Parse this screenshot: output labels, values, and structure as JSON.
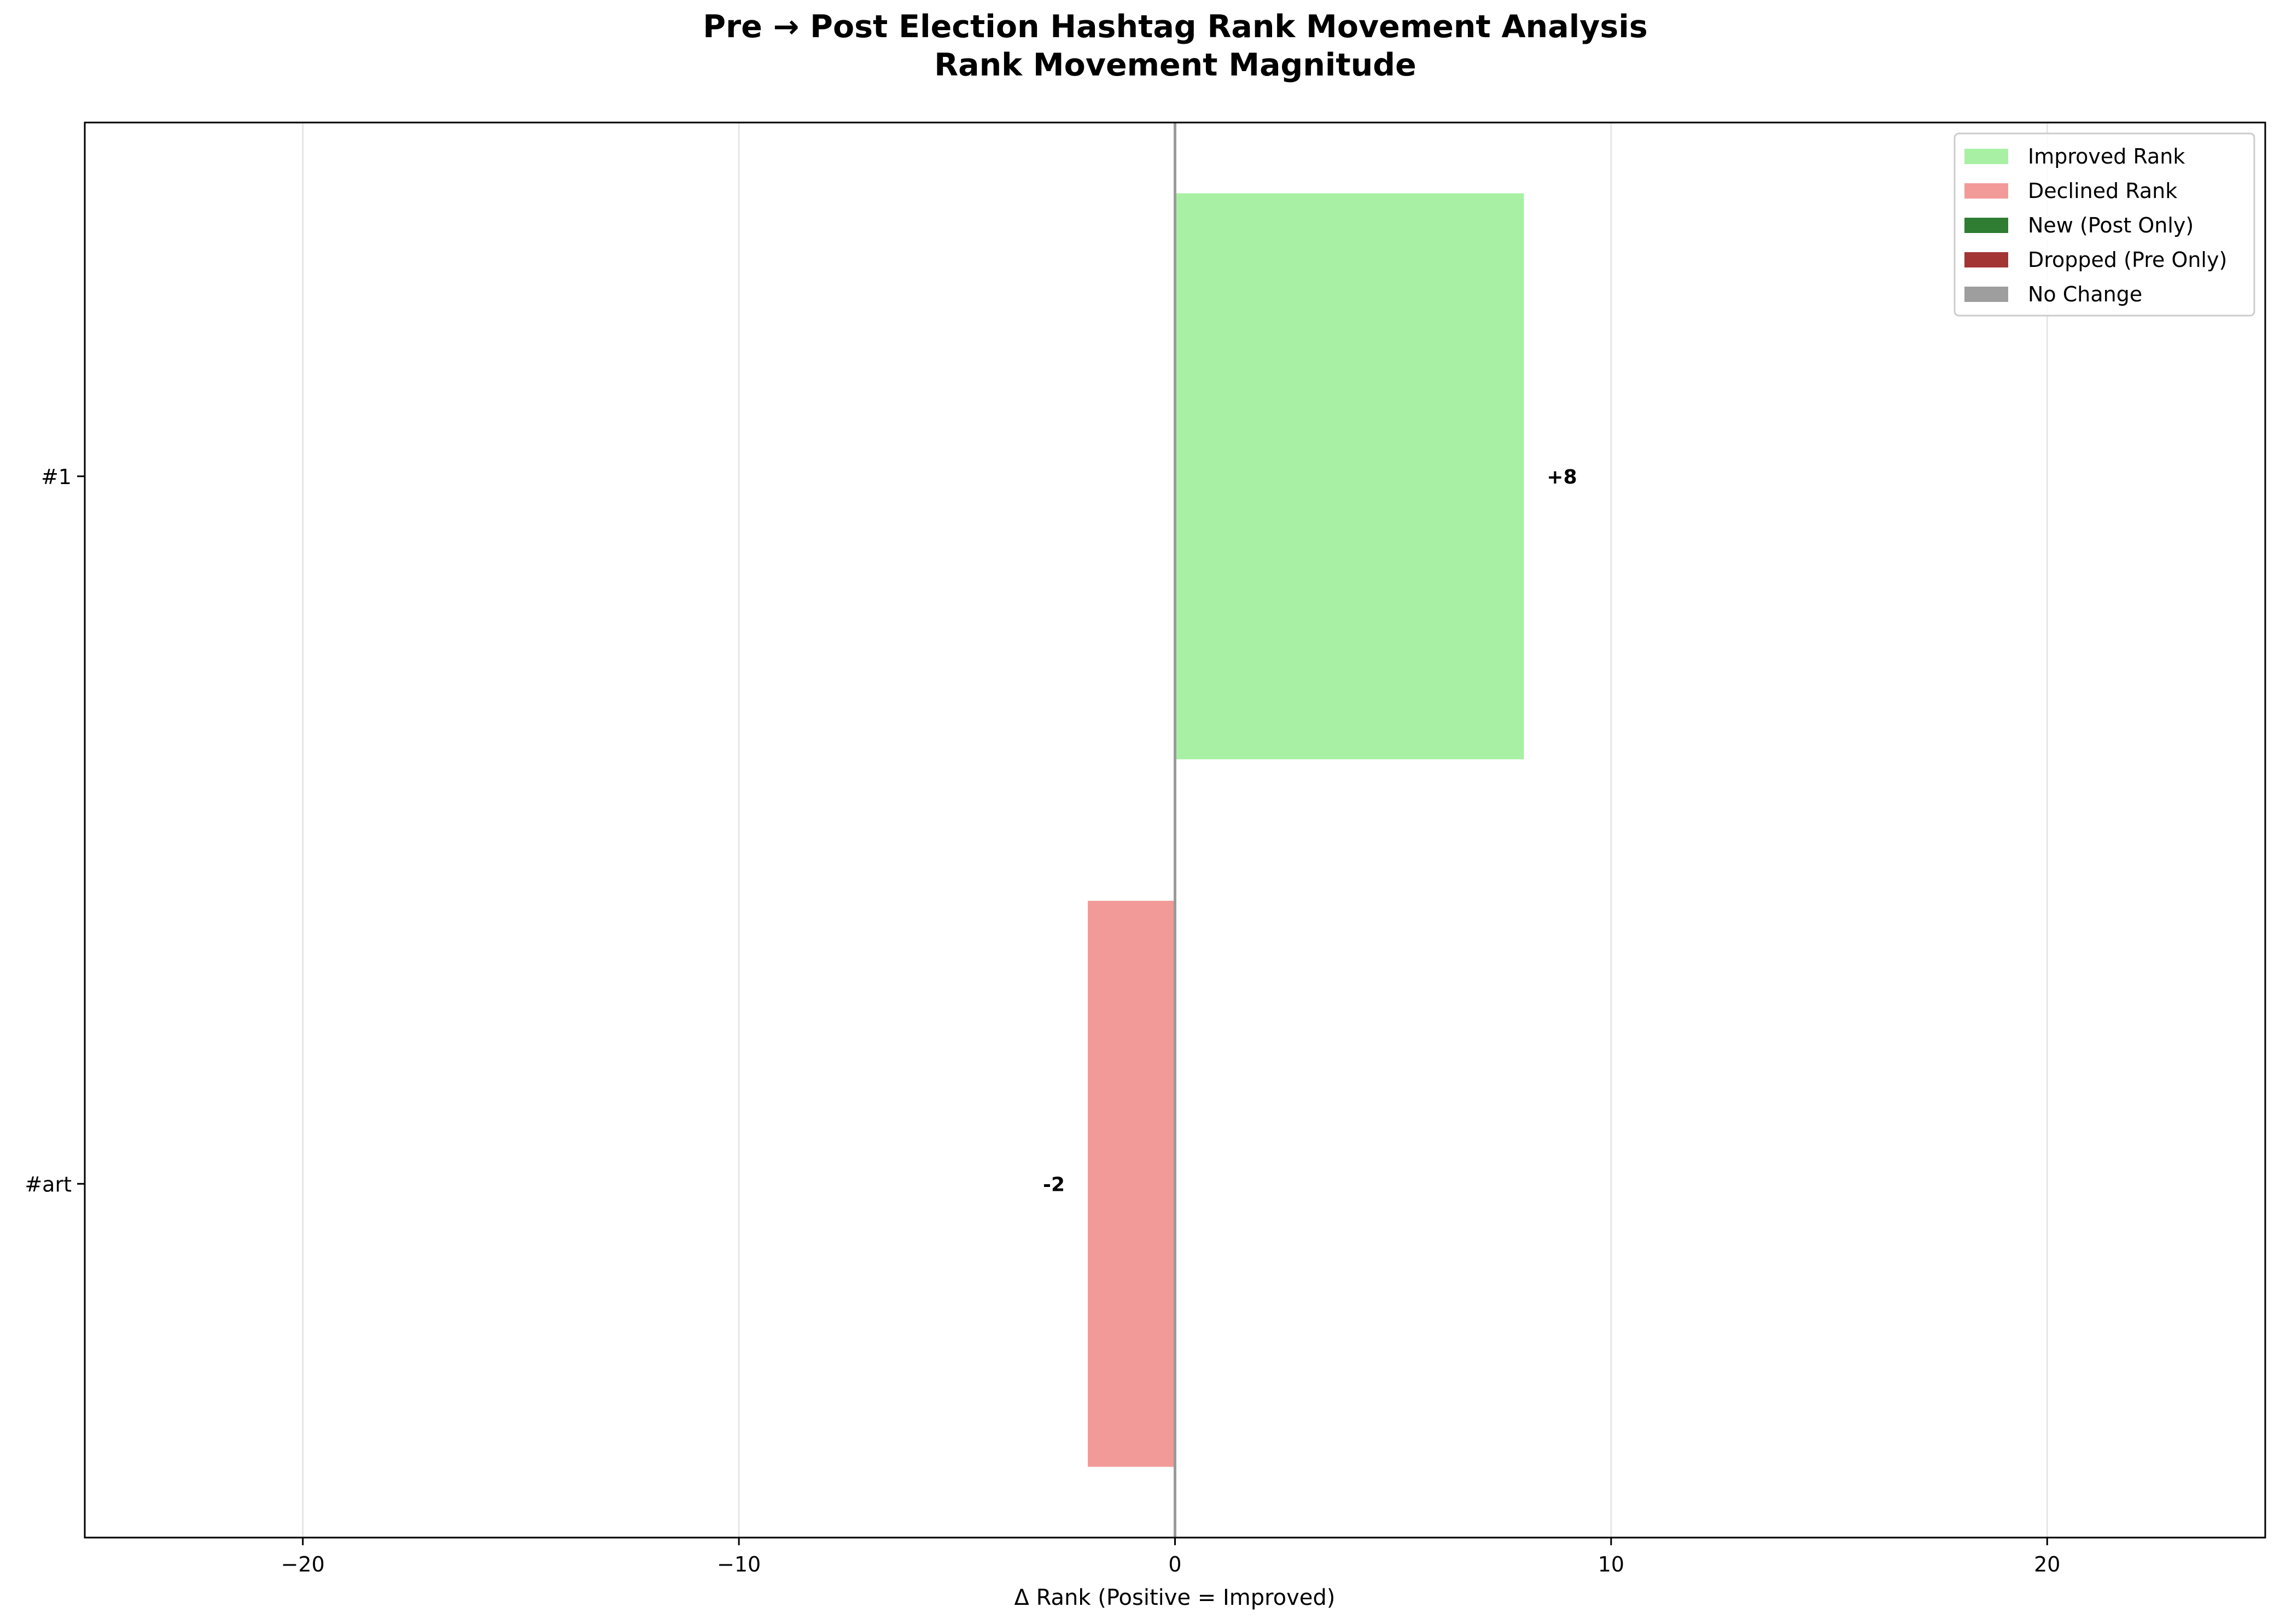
{
  "chart_data": {
    "type": "bar",
    "orientation": "horizontal",
    "title": "Pre → Post Election Hashtag Rank Movement Analysis",
    "subtitle": "Rank Movement Magnitude",
    "xlabel": "Δ Rank (Positive = Improved)",
    "ylabel": "",
    "xlim": [
      -25,
      25
    ],
    "xticks": [
      -20,
      -10,
      0,
      10,
      20
    ],
    "xtick_labels": [
      "−20",
      "−10",
      "0",
      "10",
      "20"
    ],
    "grid": "vertical",
    "categories": [
      "#1",
      "#art"
    ],
    "values": [
      8,
      -2
    ],
    "value_labels": [
      "+8",
      "-2"
    ],
    "bar_status": [
      "Improved Rank",
      "Declined Rank"
    ],
    "legend_position": "top-right",
    "legend": [
      {
        "label": "Improved Rank",
        "color": "#a8f0a4"
      },
      {
        "label": "Declined Rank",
        "color": "#f29a98"
      },
      {
        "label": "New (Post Only)",
        "color": "#2e7d32"
      },
      {
        "label": "Dropped (Pre Only)",
        "color": "#a33535"
      },
      {
        "label": "No Change",
        "color": "#9e9e9e"
      }
    ]
  }
}
